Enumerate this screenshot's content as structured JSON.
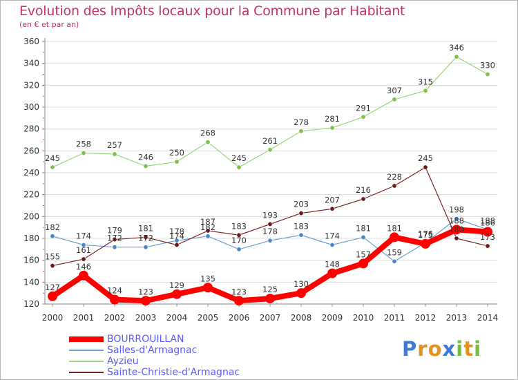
{
  "title": "Evolution des Impôts locaux pour la Commune par Habitant",
  "subtitle": "(en € et par an)",
  "logo": {
    "text": "Proxiti",
    "letters": [
      {
        "ch": "P",
        "color": "#3d7ad8"
      },
      {
        "ch": "r",
        "color": "#e2931f"
      },
      {
        "ch": "o",
        "color": "#e2931f"
      },
      {
        "ch": "x",
        "color": "#3d7ad8"
      },
      {
        "ch": "i",
        "color": "#6fbf37"
      },
      {
        "ch": "t",
        "color": "#e2931f"
      },
      {
        "ch": "i",
        "color": "#6fbf37"
      }
    ]
  },
  "chart_data": {
    "type": "line",
    "title": "Evolution des Impôts locaux pour la Commune par Habitant",
    "subtitle": "(en € et par an)",
    "x": [
      "2000",
      "2001",
      "2002",
      "2003",
      "2004",
      "2005",
      "2006",
      "2007",
      "2008",
      "2009",
      "2010",
      "2011",
      "2012",
      "2013",
      "2014"
    ],
    "ylim": [
      120,
      360
    ],
    "yticks": [
      120,
      140,
      160,
      180,
      200,
      220,
      240,
      260,
      280,
      300,
      320,
      340,
      360
    ],
    "grid": "horizontal",
    "legend_position": "bottom-left",
    "series": [
      {
        "name": "BOURROUILLAN",
        "color": "#ff0000",
        "marker": "#ff0000",
        "values": [
          127,
          146,
          124,
          123,
          129,
          135,
          123,
          125,
          130,
          148,
          157,
          181,
          175,
          188,
          186
        ],
        "labels": [
          "127",
          "146",
          "124",
          "123",
          "129",
          "135",
          "123",
          "125",
          "130",
          "148",
          "157",
          "181",
          "175",
          "188",
          "186"
        ]
      },
      {
        "name": "Salles-d'Armagnac",
        "color": "#6a9fd2",
        "marker": "#4a86c8",
        "values": [
          182,
          174,
          172,
          172,
          178,
          182,
          170,
          178,
          183,
          174,
          181,
          159,
          176,
          198,
          188
        ],
        "labels": [
          "182",
          "174",
          "172",
          "172",
          "178",
          "182",
          "170",
          "178",
          "183",
          "174",
          "181",
          "159",
          "176",
          "198",
          "188"
        ]
      },
      {
        "name": "Ayzieu",
        "color": "#99d57c",
        "marker": "#7dc04a",
        "values": [
          245,
          258,
          257,
          246,
          250,
          268,
          245,
          261,
          278,
          281,
          291,
          307,
          315,
          346,
          330
        ],
        "labels": [
          "245",
          "258",
          "257",
          "246",
          "250",
          "268",
          "245",
          "261",
          "278",
          "281",
          "291",
          "307",
          "315",
          "346",
          "330"
        ]
      },
      {
        "name": "Sainte-Christie-d'Armagnac",
        "color": "#7a2222",
        "marker": "#6a1a1a",
        "values": [
          155,
          161,
          179,
          181,
          174,
          187,
          183,
          193,
          203,
          207,
          216,
          228,
          245,
          180,
          173
        ],
        "labels": [
          "155",
          "161",
          "179",
          "181",
          "174",
          "187",
          "183",
          "193",
          "203",
          "207",
          "216",
          "228",
          "245",
          "180",
          "173"
        ]
      }
    ]
  }
}
